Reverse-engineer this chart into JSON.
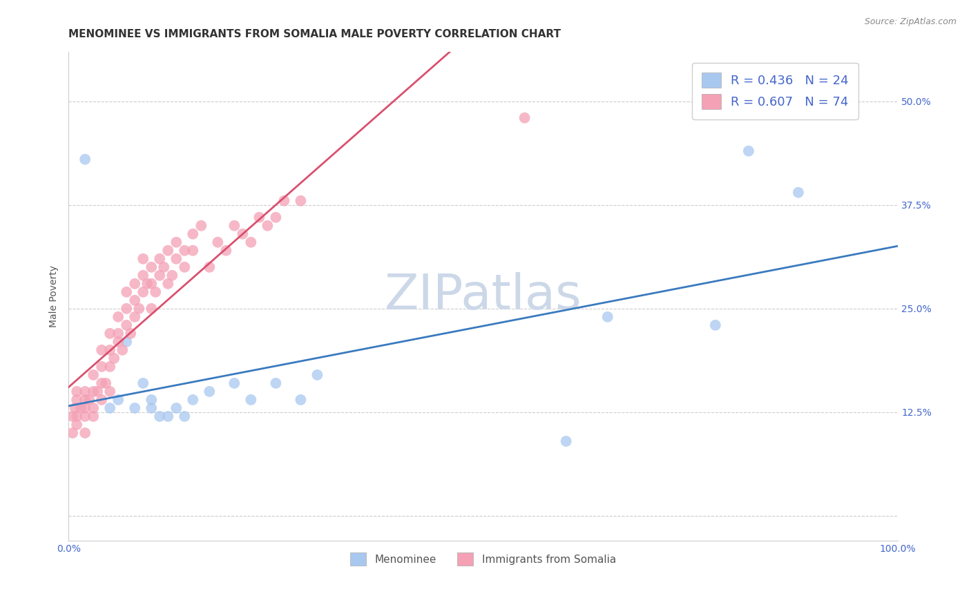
{
  "title": "MENOMINEE VS IMMIGRANTS FROM SOMALIA MALE POVERTY CORRELATION CHART",
  "source": "Source: ZipAtlas.com",
  "ylabel": "Male Poverty",
  "xlim": [
    0,
    1.0
  ],
  "ylim": [
    -0.03,
    0.56
  ],
  "xticks": [
    0.0,
    0.25,
    0.5,
    0.75,
    1.0
  ],
  "xtick_labels": [
    "0.0%",
    "",
    "",
    "",
    "100.0%"
  ],
  "yticks": [
    0.0,
    0.125,
    0.25,
    0.375,
    0.5
  ],
  "ytick_labels": [
    "",
    "12.5%",
    "25.0%",
    "37.5%",
    "50.0%"
  ],
  "background_color": "#ffffff",
  "series": [
    {
      "name": "Menominee",
      "R": 0.436,
      "N": 24,
      "color": "#a8c8f0",
      "line_color": "#3a7abf",
      "x": [
        0.02,
        0.05,
        0.06,
        0.07,
        0.08,
        0.09,
        0.1,
        0.1,
        0.11,
        0.12,
        0.13,
        0.14,
        0.15,
        0.17,
        0.2,
        0.22,
        0.25,
        0.28,
        0.3,
        0.6,
        0.65,
        0.78,
        0.82,
        0.88
      ],
      "y": [
        0.43,
        0.13,
        0.14,
        0.21,
        0.13,
        0.16,
        0.13,
        0.14,
        0.12,
        0.12,
        0.13,
        0.12,
        0.14,
        0.15,
        0.16,
        0.14,
        0.16,
        0.14,
        0.17,
        0.09,
        0.24,
        0.23,
        0.44,
        0.39
      ]
    },
    {
      "name": "Immigrants from Somalia",
      "R": 0.607,
      "N": 74,
      "color": "#f4a0b5",
      "line_color": "#d9506e",
      "x": [
        0.005,
        0.005,
        0.008,
        0.01,
        0.01,
        0.01,
        0.01,
        0.015,
        0.02,
        0.02,
        0.02,
        0.02,
        0.02,
        0.025,
        0.03,
        0.03,
        0.03,
        0.03,
        0.035,
        0.04,
        0.04,
        0.04,
        0.04,
        0.045,
        0.05,
        0.05,
        0.05,
        0.05,
        0.055,
        0.06,
        0.06,
        0.06,
        0.065,
        0.07,
        0.07,
        0.07,
        0.075,
        0.08,
        0.08,
        0.08,
        0.085,
        0.09,
        0.09,
        0.09,
        0.095,
        0.1,
        0.1,
        0.1,
        0.105,
        0.11,
        0.11,
        0.115,
        0.12,
        0.12,
        0.125,
        0.13,
        0.13,
        0.14,
        0.14,
        0.15,
        0.15,
        0.16,
        0.17,
        0.18,
        0.19,
        0.2,
        0.21,
        0.22,
        0.23,
        0.24,
        0.25,
        0.26,
        0.28,
        0.55
      ],
      "y": [
        0.1,
        0.12,
        0.13,
        0.11,
        0.12,
        0.14,
        0.15,
        0.13,
        0.1,
        0.12,
        0.13,
        0.14,
        0.15,
        0.14,
        0.13,
        0.12,
        0.15,
        0.17,
        0.15,
        0.16,
        0.14,
        0.18,
        0.2,
        0.16,
        0.15,
        0.18,
        0.2,
        0.22,
        0.19,
        0.21,
        0.22,
        0.24,
        0.2,
        0.23,
        0.25,
        0.27,
        0.22,
        0.24,
        0.26,
        0.28,
        0.25,
        0.27,
        0.29,
        0.31,
        0.28,
        0.25,
        0.28,
        0.3,
        0.27,
        0.29,
        0.31,
        0.3,
        0.28,
        0.32,
        0.29,
        0.31,
        0.33,
        0.3,
        0.32,
        0.34,
        0.32,
        0.35,
        0.3,
        0.33,
        0.32,
        0.35,
        0.34,
        0.33,
        0.36,
        0.35,
        0.36,
        0.38,
        0.38,
        0.48
      ]
    }
  ],
  "title_fontsize": 11,
  "axis_label_fontsize": 10,
  "tick_fontsize": 10,
  "legend_fontsize": 13,
  "grid_color": "#cccccc",
  "title_color": "#333333",
  "axis_color": "#4466cc",
  "watermark_color": "#ccd8e8",
  "watermark_fontsize": 52
}
